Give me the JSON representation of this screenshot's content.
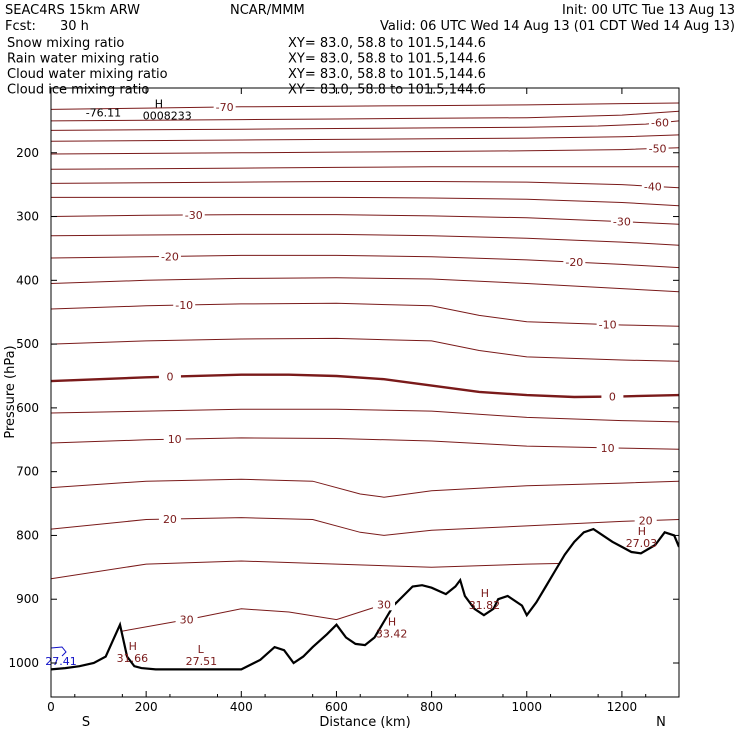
{
  "header": {
    "model": "SEAC4RS 15km ARW",
    "center": "NCAR/MMM",
    "init": "Init: 00 UTC Tue 13 Aug 13",
    "fcst_label": "Fcst:",
    "fcst_value": "30 h",
    "valid": "Valid: 06 UTC Wed 14 Aug 13 (01 CDT Wed 14 Aug 13)",
    "legend": [
      {
        "name": "Snow mixing ratio",
        "xy": "XY=  83.0, 58.8 to 101.5,144.6",
        "color": "#000000"
      },
      {
        "name": "Rain water mixing ratio",
        "xy": "XY=  83.0, 58.8 to 101.5,144.6",
        "color": "#e00000"
      },
      {
        "name": "Cloud water mixing ratio",
        "xy": "XY=  83.0, 58.8 to 101.5,144.6",
        "color": "#1010c8"
      },
      {
        "name": "Cloud ice mixing ratio",
        "xy": "XY=  83.0, 58.8 to 101.5,144.6",
        "color": "#000000"
      }
    ]
  },
  "chart_data": {
    "type": "line",
    "xlabel": "Distance (km)",
    "ylabel": "Pressure (hPa)",
    "xlim": [
      0,
      1320
    ],
    "ylim": [
      1025,
      125
    ],
    "x_ticks": [
      0,
      200,
      400,
      600,
      800,
      1000,
      1200
    ],
    "y_ticks": [
      200,
      300,
      400,
      500,
      600,
      700,
      800,
      900,
      1000
    ],
    "x_end_labels": {
      "left": "S",
      "right": "N"
    },
    "contour_color": "#7a1a1a",
    "terrain_color": "#000000",
    "isotherms": [
      {
        "value": -70,
        "label": "-70",
        "x": [
          0,
          200,
          400,
          600,
          800,
          1000,
          1100,
          1200,
          1320
        ],
        "p": [
          132,
          130,
          128,
          127,
          126,
          125,
          124,
          123,
          122
        ]
      },
      {
        "value": -65,
        "x": [
          0,
          200,
          400,
          600,
          800,
          1000,
          1200,
          1320
        ],
        "p": [
          150,
          149,
          148,
          147,
          146,
          145,
          141,
          135
        ]
      },
      {
        "value": -60,
        "label": "-60",
        "x": [
          0,
          200,
          400,
          600,
          800,
          1000,
          1150,
          1250,
          1320
        ],
        "p": [
          165,
          164,
          163,
          162,
          161,
          160,
          158,
          155,
          150
        ]
      },
      {
        "value": -55,
        "x": [
          0,
          200,
          400,
          600,
          800,
          1000,
          1200,
          1320
        ],
        "p": [
          182,
          181,
          180,
          179,
          178,
          177,
          175,
          172
        ]
      },
      {
        "value": -50,
        "label": "-50",
        "x": [
          0,
          200,
          400,
          600,
          800,
          1000,
          1200,
          1320
        ],
        "p": [
          202,
          201,
          200,
          199,
          198,
          197,
          195,
          192
        ]
      },
      {
        "value": -45,
        "x": [
          0,
          200,
          400,
          600,
          800,
          1000,
          1200,
          1320
        ],
        "p": [
          226,
          225,
          224,
          223,
          222,
          222,
          222,
          222
        ]
      },
      {
        "value": -40,
        "label": "-40",
        "x": [
          0,
          200,
          400,
          600,
          800,
          1000,
          1200,
          1320
        ],
        "p": [
          248,
          247,
          246,
          245,
          245,
          246,
          250,
          255
        ]
      },
      {
        "value": -35,
        "x": [
          0,
          200,
          400,
          600,
          800,
          1000,
          1200,
          1320
        ],
        "p": [
          270,
          270,
          270,
          270,
          271,
          273,
          278,
          283
        ]
      },
      {
        "value": -30,
        "label": "-30",
        "x": [
          0,
          200,
          400,
          600,
          800,
          1000,
          1200,
          1320
        ],
        "p": [
          300,
          298,
          297,
          297,
          299,
          302,
          308,
          312
        ]
      },
      {
        "value": -25,
        "x": [
          0,
          200,
          400,
          600,
          800,
          1000,
          1200,
          1320
        ],
        "p": [
          330,
          329,
          328,
          328,
          330,
          334,
          340,
          345
        ]
      },
      {
        "value": -20,
        "label": "-20",
        "x": [
          0,
          200,
          400,
          600,
          800,
          1000,
          1200,
          1320
        ],
        "p": [
          365,
          363,
          361,
          361,
          363,
          368,
          375,
          380
        ]
      },
      {
        "value": -15,
        "x": [
          0,
          200,
          400,
          600,
          800,
          1000,
          1200,
          1320
        ],
        "p": [
          405,
          400,
          397,
          396,
          398,
          405,
          413,
          418
        ]
      },
      {
        "value": -10,
        "label": "-10",
        "x": [
          0,
          200,
          400,
          600,
          800,
          900,
          1000,
          1200,
          1320
        ],
        "p": [
          445,
          440,
          437,
          436,
          440,
          455,
          465,
          470,
          472
        ]
      },
      {
        "value": -5,
        "x": [
          0,
          200,
          400,
          600,
          800,
          900,
          1000,
          1200,
          1320
        ],
        "p": [
          500,
          495,
          492,
          491,
          495,
          510,
          520,
          525,
          527
        ]
      },
      {
        "value": 0,
        "label": "0",
        "bold": true,
        "x": [
          0,
          200,
          400,
          500,
          600,
          700,
          800,
          900,
          1000,
          1100,
          1200,
          1320
        ],
        "p": [
          558,
          552,
          548,
          548,
          550,
          555,
          565,
          575,
          580,
          583,
          582,
          580
        ]
      },
      {
        "value": 5,
        "x": [
          0,
          200,
          400,
          600,
          800,
          1000,
          1200,
          1320
        ],
        "p": [
          608,
          605,
          602,
          602,
          605,
          615,
          620,
          622
        ]
      },
      {
        "value": 10,
        "label": "10",
        "x": [
          0,
          200,
          400,
          600,
          800,
          1000,
          1200,
          1320
        ],
        "p": [
          655,
          650,
          647,
          648,
          652,
          660,
          663,
          665
        ]
      },
      {
        "value": 15,
        "x": [
          0,
          200,
          400,
          550,
          650,
          700,
          800,
          1000,
          1200,
          1320
        ],
        "p": [
          725,
          715,
          712,
          715,
          735,
          740,
          730,
          722,
          718,
          715
        ]
      },
      {
        "value": 20,
        "label": "20",
        "x": [
          0,
          200,
          400,
          550,
          650,
          700,
          800,
          1000,
          1200,
          1320
        ],
        "p": [
          790,
          775,
          772,
          775,
          795,
          800,
          792,
          785,
          778,
          775
        ]
      },
      {
        "value": 25,
        "x": [
          0,
          200,
          400,
          600,
          800,
          1000,
          1320
        ],
        "p": [
          868,
          845,
          840,
          845,
          850,
          845,
          840
        ]
      },
      {
        "value": 30,
        "label": "30",
        "x": [
          150,
          300,
          400,
          500,
          600,
          700,
          800,
          860
        ],
        "p": [
          950,
          930,
          915,
          920,
          932,
          908,
          895,
          888
        ]
      }
    ],
    "terrain": {
      "x": [
        0,
        30,
        60,
        90,
        115,
        130,
        145,
        160,
        175,
        190,
        220,
        300,
        400,
        440,
        470,
        490,
        510,
        530,
        550,
        580,
        600,
        620,
        640,
        660,
        680,
        700,
        720,
        740,
        760,
        780,
        800,
        830,
        850,
        860,
        870,
        890,
        910,
        930,
        940,
        960,
        990,
        1000,
        1020,
        1040,
        1060,
        1080,
        1100,
        1120,
        1140,
        1160,
        1180,
        1200,
        1220,
        1240,
        1270,
        1290,
        1310,
        1320
      ],
      "p": [
        1010,
        1008,
        1005,
        1000,
        990,
        965,
        940,
        990,
        1005,
        1008,
        1010,
        1010,
        1010,
        995,
        975,
        980,
        1000,
        990,
        975,
        955,
        940,
        960,
        970,
        972,
        960,
        935,
        910,
        895,
        880,
        878,
        882,
        892,
        880,
        870,
        895,
        915,
        925,
        915,
        900,
        895,
        910,
        925,
        905,
        880,
        855,
        830,
        810,
        795,
        790,
        800,
        810,
        818,
        826,
        828,
        815,
        795,
        800,
        818
      ]
    },
    "annotations": [
      {
        "type": "H",
        "value": "0008233",
        "x": 235,
        "p": 145
      },
      {
        "type": "",
        "value": "-76.11",
        "x": 115,
        "p": 140
      },
      {
        "type": "H",
        "value": "31.66",
        "x": 180,
        "p": 995
      },
      {
        "type": "L",
        "value": "27.51",
        "x": 325,
        "p": 1000
      },
      {
        "type": "H",
        "value": "33.42",
        "x": 725,
        "p": 957
      },
      {
        "type": "H",
        "value": "31.82",
        "x": 920,
        "p": 912
      },
      {
        "type": "H",
        "value": "27.03",
        "x": 1250,
        "p": 815
      },
      {
        "type": "",
        "value": "27.41",
        "x": 30,
        "p": 1000
      }
    ]
  }
}
